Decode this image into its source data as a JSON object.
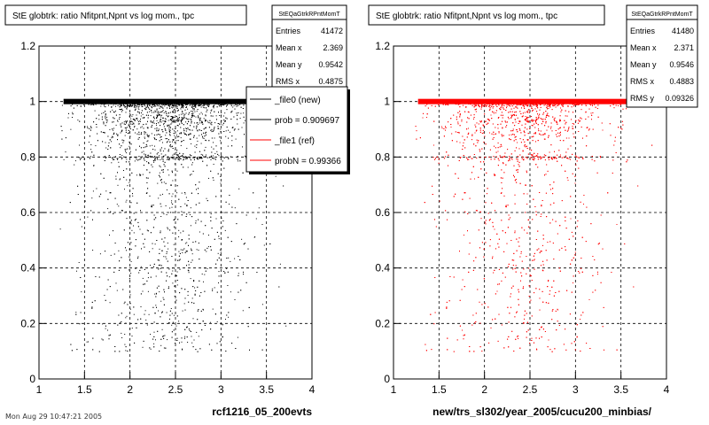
{
  "footer_text": "Mon Aug 29 10:47:21 2005",
  "chart_data": [
    {
      "type": "scatter",
      "title": "StE globtrk: ratio Nfitpnt,Npnt vs log mom., tpc",
      "xlabel": "rcf1216_05_200evts",
      "ylabel": "",
      "xlim": [
        1,
        4
      ],
      "ylim": [
        0,
        1.2
      ],
      "x_ticks": [
        1,
        1.5,
        2,
        2.5,
        3,
        3.5,
        4
      ],
      "x_tick_labels": [
        "1",
        "1.5",
        "2",
        "2.5",
        "3",
        "3.5",
        "4"
      ],
      "y_ticks": [
        0,
        0.2,
        0.4,
        0.6,
        0.8,
        1,
        1.2
      ],
      "y_tick_labels": [
        "0",
        "0.2",
        "0.4",
        "0.6",
        "0.8",
        "1",
        "1.2"
      ],
      "grid": true,
      "color": "#000000",
      "stats": {
        "name": "StEQaGtrkRPntMomT",
        "rows": [
          {
            "label": "Entries",
            "value": "41472"
          },
          {
            "label": "Mean x",
            "value": "2.369"
          },
          {
            "label": "Mean y",
            "value": "0.9542"
          },
          {
            "label": "RMS x",
            "value": "0.4875"
          }
        ]
      },
      "legend": {
        "placement": "top-right",
        "entries": [
          {
            "label": "_file0 (new)",
            "color": "#000000"
          },
          {
            "label": "prob = 0.909697",
            "color": "#000000"
          },
          {
            "label": "_file1 (ref)",
            "color": "#ff0000"
          },
          {
            "label": "probN = 0.99366",
            "color": "#ff0000"
          }
        ]
      },
      "density": {
        "x_range": [
          1.22,
          3.95
        ],
        "bands": [
          {
            "y": 1.0,
            "spread": 0.008,
            "weight": 0.42
          },
          {
            "y": 0.93,
            "spread": 0.05,
            "weight": 0.28
          },
          {
            "y": 0.8,
            "spread": 0.006,
            "weight": 0.05
          },
          {
            "y": 0.6,
            "spread": 0.22,
            "weight": 0.25
          }
        ],
        "x_peak": 2.4,
        "x_sigma": 0.45
      }
    },
    {
      "type": "scatter",
      "title": "StE globtrk: ratio Nfitpnt,Npnt vs log mom., tpc",
      "xlabel": "new/trs_sl302/year_2005/cucu200_minbias/",
      "ylabel": "",
      "xlim": [
        1,
        4
      ],
      "ylim": [
        0,
        1.2
      ],
      "x_ticks": [
        1,
        1.5,
        2,
        2.5,
        3,
        3.5,
        4
      ],
      "x_tick_labels": [
        "1",
        "1.5",
        "2",
        "2.5",
        "3",
        "3.5",
        "4"
      ],
      "y_ticks": [
        0,
        0.2,
        0.4,
        0.6,
        0.8,
        1,
        1.2
      ],
      "y_tick_labels": [
        "0",
        "0.2",
        "0.4",
        "0.6",
        "0.8",
        "1",
        "1.2"
      ],
      "grid": true,
      "color": "#ff0000",
      "stats": {
        "name": "StEQaGtrkRPntMomT",
        "rows": [
          {
            "label": "Entries",
            "value": "41480"
          },
          {
            "label": "Mean x",
            "value": "2.371"
          },
          {
            "label": "Mean y",
            "value": "0.9546"
          },
          {
            "label": "RMS x",
            "value": "0.4883"
          },
          {
            "label": "RMS y",
            "value": "0.09326"
          }
        ]
      },
      "density": {
        "x_range": [
          1.22,
          3.95
        ],
        "bands": [
          {
            "y": 1.0,
            "spread": 0.008,
            "weight": 0.42
          },
          {
            "y": 0.93,
            "spread": 0.05,
            "weight": 0.28
          },
          {
            "y": 0.8,
            "spread": 0.006,
            "weight": 0.05
          },
          {
            "y": 0.6,
            "spread": 0.22,
            "weight": 0.25
          }
        ],
        "x_peak": 2.4,
        "x_sigma": 0.45
      }
    }
  ]
}
